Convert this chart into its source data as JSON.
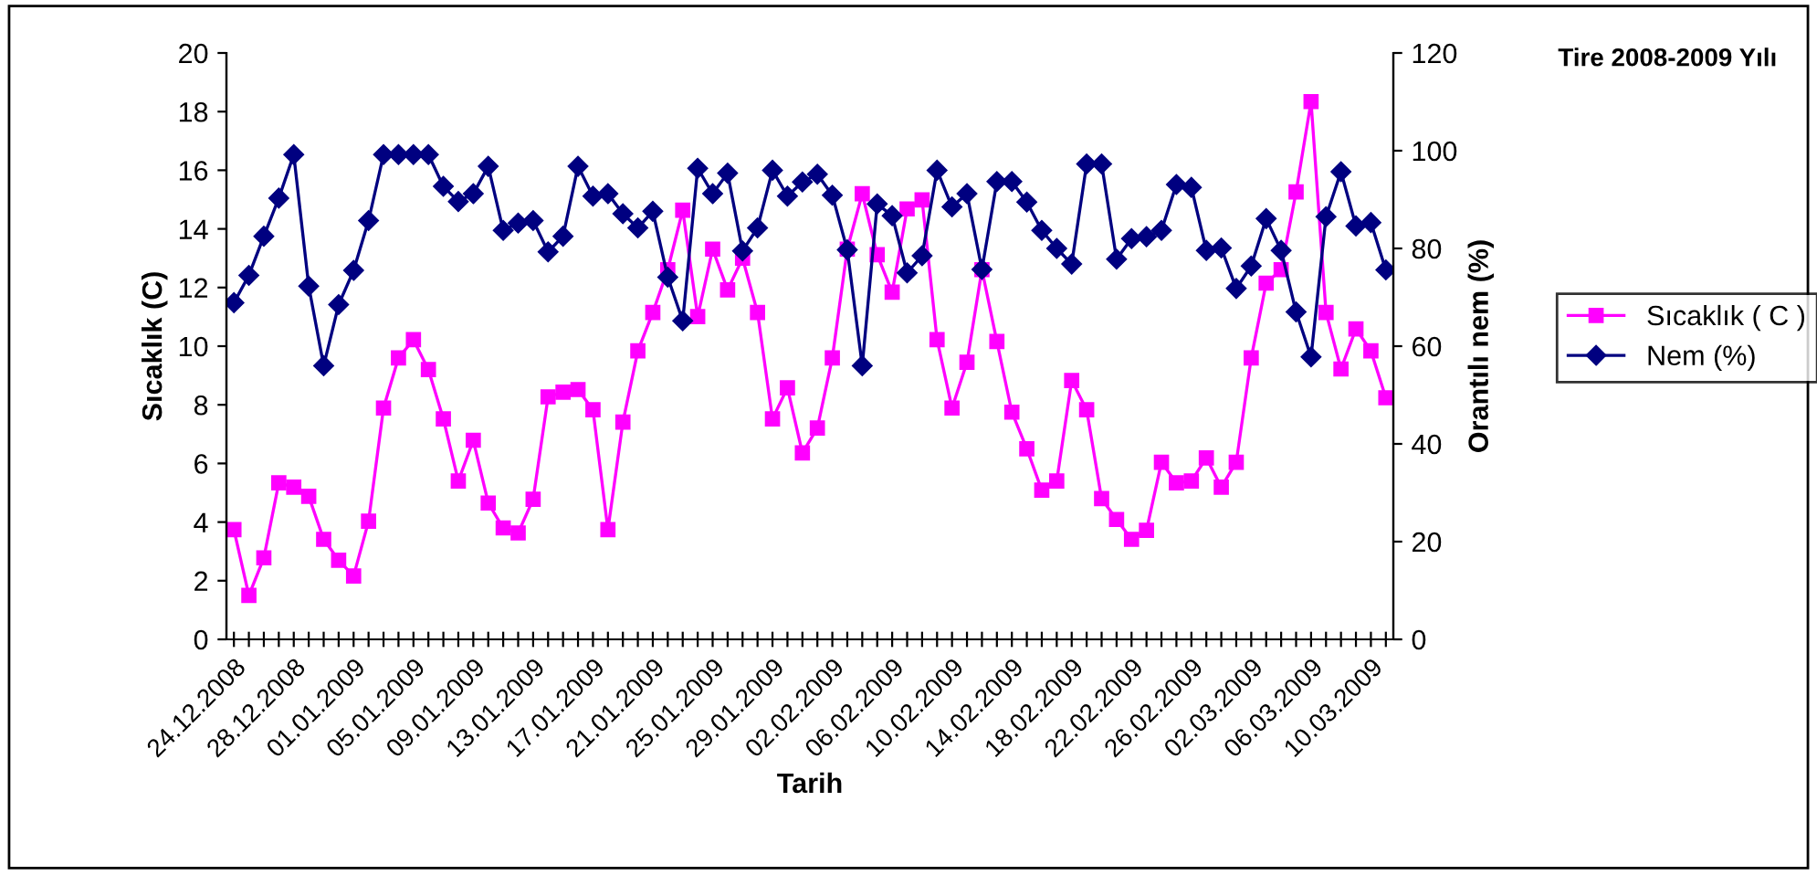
{
  "chart_data": {
    "type": "line",
    "title": "Tire 2008-2009 Yılı",
    "xlabel": "Tarih",
    "ylabel": "Sıcaklık (C)",
    "y2label": "Orantılı nem (%)",
    "categories": [
      "24.12.2008",
      null,
      null,
      null,
      "28.12.2008",
      null,
      null,
      null,
      "01.01.2009",
      null,
      null,
      null,
      "05.01.2009",
      null,
      null,
      null,
      "09.01.2009",
      null,
      null,
      null,
      "13.01.2009",
      null,
      null,
      null,
      "17.01.2009",
      null,
      null,
      null,
      "21.01.2009",
      null,
      null,
      null,
      "25.01.2009",
      null,
      null,
      null,
      "29.01.2009",
      null,
      null,
      null,
      "02.02.2009",
      null,
      null,
      null,
      "06.02.2009",
      null,
      null,
      null,
      "10.02.2009",
      null,
      null,
      null,
      "14.02.2009",
      null,
      null,
      null,
      "18.02.2009",
      null,
      null,
      null,
      "22.02.2009",
      null,
      null,
      null,
      "26.02.2009",
      null,
      null,
      null,
      "02.03.2009",
      null,
      null,
      null,
      "06.03.2009",
      null,
      null,
      null,
      "10.03.2009",
      null
    ],
    "series": [
      {
        "name": "Sıcaklık ( C )",
        "color": "#ff00ff",
        "marker": "square",
        "values": [
          3.74,
          1.5,
          2.78,
          5.34,
          5.19,
          4.88,
          3.41,
          2.7,
          2.16,
          4.03,
          7.89,
          9.6,
          10.22,
          9.2,
          7.52,
          5.4,
          6.79,
          4.65,
          3.8,
          3.63,
          4.78,
          8.27,
          8.43,
          8.52,
          7.83,
          3.74,
          7.41,
          9.84,
          11.15,
          12.61,
          14.64,
          11.01,
          13.31,
          11.92,
          13.0,
          11.15,
          7.52,
          8.58,
          6.36,
          7.21,
          9.6,
          13.31,
          15.2,
          13.12,
          11.84,
          14.68,
          14.99,
          10.22,
          7.89,
          9.45,
          12.61,
          10.16,
          7.75,
          6.5,
          5.09,
          5.4,
          8.83,
          7.83,
          4.8,
          4.09,
          3.41,
          3.72,
          6.04,
          5.34,
          5.4,
          6.19,
          5.19,
          6.04,
          9.6,
          12.15,
          12.61,
          15.26,
          18.34,
          11.15,
          9.22,
          10.59,
          9.84,
          8.24
        ]
      },
      {
        "name": "Nem (%)",
        "color": "#000080",
        "marker": "diamond",
        "axis": "y2",
        "values": [
          68.9,
          74.5,
          82.5,
          90.3,
          99.2,
          72.3,
          56.0,
          68.5,
          75.5,
          85.7,
          99.2,
          99.2,
          99.2,
          99.2,
          92.7,
          89.6,
          91.2,
          96.8,
          83.7,
          85.2,
          85.7,
          79.3,
          82.5,
          96.8,
          90.7,
          91.2,
          87.1,
          84.2,
          87.6,
          74.1,
          65.2,
          96.4,
          91.2,
          95.4,
          79.5,
          84.2,
          96.0,
          90.7,
          93.6,
          95.2,
          90.9,
          79.7,
          56.0,
          89.1,
          86.7,
          75.0,
          78.5,
          96.0,
          88.5,
          91.2,
          75.7,
          93.7,
          93.7,
          89.5,
          83.7,
          80.0,
          76.8,
          97.3,
          97.3,
          77.8,
          82.0,
          82.4,
          83.7,
          93.1,
          92.5,
          79.6,
          80.1,
          71.8,
          76.4,
          86.1,
          79.6,
          67.0,
          57.8,
          86.5,
          95.7,
          84.6,
          85.3,
          75.6
        ]
      }
    ],
    "ylim": [
      0,
      20
    ],
    "yticks": [
      0,
      2,
      4,
      6,
      8,
      10,
      12,
      14,
      16,
      18,
      20
    ],
    "y2lim": [
      0,
      120
    ],
    "y2ticks": [
      0,
      20,
      40,
      60,
      80,
      100,
      120
    ],
    "legend": "right",
    "grid": false,
    "line_style": "solid"
  }
}
